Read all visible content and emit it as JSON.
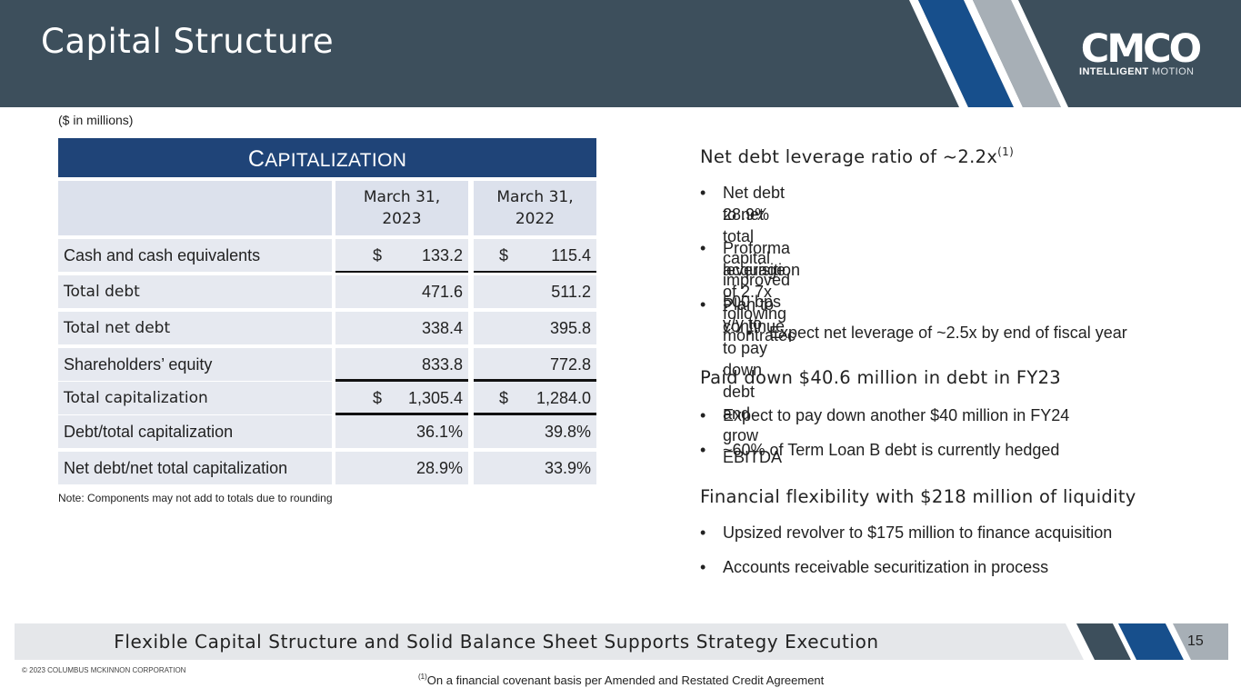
{
  "header": {
    "title": "Capital Structure",
    "logo_text": "CMCO",
    "logo_tag_bold": "INTELLIGENT",
    "logo_tag_light": "MOTION"
  },
  "units_note": "($ in millions)",
  "table": {
    "title_first": "C",
    "title_rest": "APITALIZATION",
    "col1_line1": "March 31,",
    "col1_line2": "2023",
    "col2_line1": "March 31,",
    "col2_line2": "2022",
    "rows": [
      {
        "label": "Cash and cash equivalents",
        "v1_prefix": "$",
        "v1": "133.2",
        "v2_prefix": "$",
        "v2": "115.4"
      },
      {
        "label": "Total debt",
        "v1": "471.6",
        "v2": "511.2"
      },
      {
        "label": "Total net debt",
        "v1": "338.4",
        "v2": "395.8"
      },
      {
        "label": "Shareholders’ equity",
        "v1": "833.8",
        "v2": "772.8"
      },
      {
        "label": "Total capitalization",
        "v1_prefix": "$",
        "v1": "1,305.4",
        "v2_prefix": "$",
        "v2": "1,284.0"
      },
      {
        "label": "Debt/total capitalization",
        "v1": "36.1%",
        "v2": "39.8%"
      },
      {
        "label": "Net debt/net total capitalization",
        "v1": "28.9%",
        "v2": "33.9%"
      }
    ]
  },
  "table_note": "Note: Components may not add to totals due to rounding",
  "sections": [
    {
      "heading": "Net debt leverage ratio of ~2.2x",
      "heading_sup": "(1)",
      "bullets": [
        "Net debt to net total capital improved 500 bps y/y to",
        "28.9%",
        "Proforma leverage of 2.7x following montratec",
        "acquisition",
        "Plan to continue to pay down debt and grow EBITDA",
        "Expect net leverage of ~2.5x by end of fiscal year"
      ]
    },
    {
      "heading": "Paid down $40.6 million in debt in FY23",
      "bullets": [
        "Expect to pay down another $40 million in FY24",
        "~60% of Term Loan B debt is currently hedged"
      ]
    },
    {
      "heading": "Financial flexibility with $218 million of liquidity",
      "bullets": [
        "Upsized revolver to $175 million to finance acquisition",
        "Accounts receivable securitization in process"
      ]
    }
  ],
  "bullet_char": "•",
  "footer": {
    "banner": "Flexible Capital Structure and Solid Balance Sheet Supports Strategy Execution",
    "page_number": "15",
    "copyright": "© 2023 COLUMBUS MCKINNON CORPORATION",
    "footnote_sup": "(1)",
    "footnote": "On a financial covenant basis per Amended and Restated Credit Agreement"
  },
  "colors": {
    "header_bg": "#3d4f5c",
    "brand_blue": "#1f4478",
    "stripe_blue": "#174f8c",
    "stripe_gray": "#a7afb6"
  }
}
